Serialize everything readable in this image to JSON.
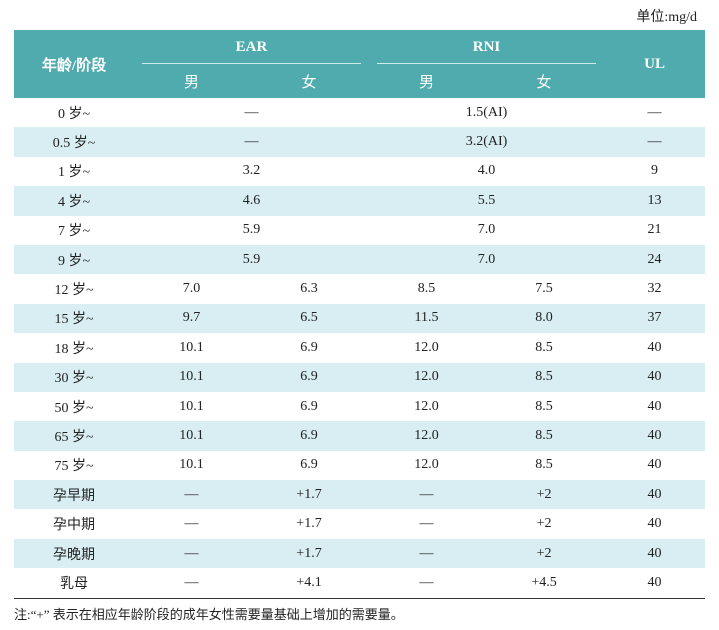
{
  "unit": "单位:mg/d",
  "table": {
    "header": {
      "age": "年龄/阶段",
      "ear": "EAR",
      "rni": "RNI",
      "ul": "UL",
      "sub": [
        "男",
        "女",
        "男",
        "女"
      ]
    },
    "rows": [
      [
        "0 岁~",
        "—",
        "1.5(AI)",
        "—"
      ],
      [
        "0.5 岁~",
        "—",
        "3.2(AI)",
        "—"
      ],
      [
        "1 岁~",
        "3.2",
        "4.0",
        "9"
      ],
      [
        "4 岁~",
        "4.6",
        "5.5",
        "13"
      ],
      [
        "7 岁~",
        "5.9",
        "7.0",
        "21"
      ],
      [
        "9 岁~",
        "5.9",
        "7.0",
        "24"
      ],
      [
        "12 岁~",
        "7.0",
        "6.3",
        "8.5",
        "7.5",
        "32"
      ],
      [
        "15 岁~",
        "9.7",
        "6.5",
        "11.5",
        "8.0",
        "37"
      ],
      [
        "18 岁~",
        "10.1",
        "6.9",
        "12.0",
        "8.5",
        "40"
      ],
      [
        "30 岁~",
        "10.1",
        "6.9",
        "12.0",
        "8.5",
        "40"
      ],
      [
        "50 岁~",
        "10.1",
        "6.9",
        "12.0",
        "8.5",
        "40"
      ],
      [
        "65 岁~",
        "10.1",
        "6.9",
        "12.0",
        "8.5",
        "40"
      ],
      [
        "75 岁~",
        "10.1",
        "6.9",
        "12.0",
        "8.5",
        "40"
      ],
      [
        "孕早期",
        "—",
        "+1.7",
        "—",
        "+2",
        "40"
      ],
      [
        "孕中期",
        "—",
        "+1.7",
        "—",
        "+2",
        "40"
      ],
      [
        "孕晚期",
        "—",
        "+1.7",
        "—",
        "+2",
        "40"
      ],
      [
        "乳母",
        "—",
        "+4.1",
        "—",
        "+4.5",
        "40"
      ]
    ]
  },
  "note": "注:“+” 表示在相应年龄阶段的成年女性需要量基础上增加的需要量。"
}
